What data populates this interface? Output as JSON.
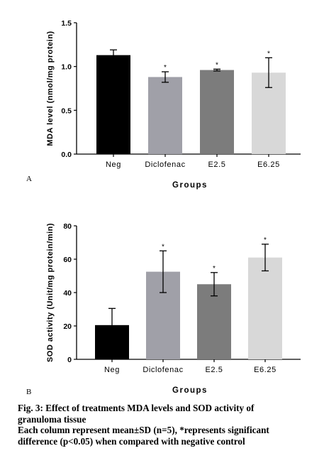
{
  "chart_data": [
    {
      "type": "bar",
      "panel": "A",
      "categories": [
        "Neg",
        "Diclofenac",
        "E2.5",
        "E6.25"
      ],
      "values": [
        1.13,
        0.88,
        0.96,
        0.93
      ],
      "errors": [
        0.06,
        0.06,
        0.01,
        0.17
      ],
      "significance": [
        "",
        "*",
        "*",
        "*"
      ],
      "colors": [
        "#000000",
        "#a0a0a8",
        "#7c7c7c",
        "#d8d8d8"
      ],
      "xlabel": "Groups",
      "ylabel": "MDA level (nmol/mg protein)",
      "ylim": [
        0,
        1.5
      ],
      "yticks": [
        0.0,
        0.5,
        1.0,
        1.5
      ],
      "ytick_labels": [
        "0.0",
        "0.5",
        "1.0",
        "1.5"
      ]
    },
    {
      "type": "bar",
      "panel": "B",
      "categories": [
        "Neg",
        "Diclofenac",
        "E2.5",
        "E6.25"
      ],
      "values": [
        20.5,
        52.5,
        45,
        61
      ],
      "errors": [
        10,
        12.5,
        7,
        8
      ],
      "significance": [
        "",
        "*",
        "*",
        "*"
      ],
      "colors": [
        "#000000",
        "#a0a0a8",
        "#7c7c7c",
        "#d8d8d8"
      ],
      "xlabel": "Groups",
      "ylabel": "SOD activity (Unit/mg protein/min)",
      "ylim": [
        0,
        80
      ],
      "yticks": [
        0,
        20,
        40,
        60,
        80
      ],
      "ytick_labels": [
        "0",
        "20",
        "40",
        "60",
        "80"
      ]
    }
  ],
  "caption": {
    "line1": "Fig. 3: Effect of treatments MDA levels and SOD activity of",
    "line2": "granuloma tissue",
    "line3": "Each column represent mean±SD (n=5), *represents significant",
    "line4": "difference (p<0.05) when compared with negative control"
  }
}
